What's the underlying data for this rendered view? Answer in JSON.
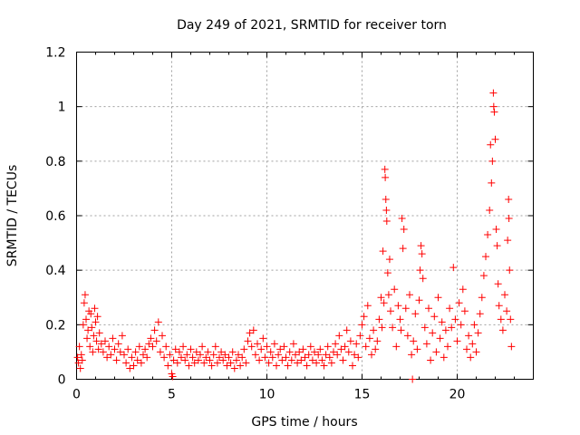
{
  "chart_data": {
    "type": "scatter",
    "title": "Day 249 of 2021, SRMTID for receiver torn",
    "xlabel": "GPS time / hours",
    "ylabel": "SRMTID / TECUs",
    "xlim": [
      0,
      24
    ],
    "ylim": [
      0,
      1.2
    ],
    "xticks": [
      0,
      5,
      10,
      15,
      20
    ],
    "xtick_labels": [
      "0",
      "5",
      "10",
      "15",
      "20"
    ],
    "yticks": [
      0,
      0.2,
      0.4,
      0.6,
      0.8,
      1.0,
      1.2
    ],
    "ytick_labels": [
      "0",
      "0.2",
      "0.4",
      "0.6",
      "0.8",
      "1",
      "1.2"
    ],
    "grid": true,
    "marker": "+",
    "series": [
      {
        "name": "SRMTID",
        "color": "#ff0000",
        "points": [
          [
            0.05,
            0.08
          ],
          [
            0.1,
            0.06
          ],
          [
            0.15,
            0.12
          ],
          [
            0.2,
            0.04
          ],
          [
            0.25,
            0.09
          ],
          [
            0.3,
            0.07
          ],
          [
            0.35,
            0.2
          ],
          [
            0.4,
            0.28
          ],
          [
            0.45,
            0.31
          ],
          [
            0.5,
            0.22
          ],
          [
            0.55,
            0.15
          ],
          [
            0.6,
            0.18
          ],
          [
            0.65,
            0.25
          ],
          [
            0.7,
            0.12
          ],
          [
            0.75,
            0.24
          ],
          [
            0.8,
            0.19
          ],
          [
            0.85,
            0.1
          ],
          [
            0.9,
            0.16
          ],
          [
            0.95,
            0.26
          ],
          [
            1.0,
            0.21
          ],
          [
            1.05,
            0.14
          ],
          [
            1.1,
            0.23
          ],
          [
            1.15,
            0.11
          ],
          [
            1.2,
            0.17
          ],
          [
            1.3,
            0.13
          ],
          [
            1.4,
            0.1
          ],
          [
            1.5,
            0.14
          ],
          [
            1.6,
            0.08
          ],
          [
            1.7,
            0.12
          ],
          [
            1.8,
            0.09
          ],
          [
            1.9,
            0.15
          ],
          [
            2.0,
            0.11
          ],
          [
            2.1,
            0.07
          ],
          [
            2.2,
            0.13
          ],
          [
            2.3,
            0.1
          ],
          [
            2.4,
            0.16
          ],
          [
            2.5,
            0.09
          ],
          [
            2.6,
            0.06
          ],
          [
            2.7,
            0.11
          ],
          [
            2.8,
            0.04
          ],
          [
            2.9,
            0.08
          ],
          [
            3.0,
            0.05
          ],
          [
            3.1,
            0.1
          ],
          [
            3.2,
            0.07
          ],
          [
            3.3,
            0.12
          ],
          [
            3.4,
            0.06
          ],
          [
            3.5,
            0.09
          ],
          [
            3.6,
            0.11
          ],
          [
            3.7,
            0.08
          ],
          [
            3.8,
            0.13
          ],
          [
            3.9,
            0.15
          ],
          [
            4.0,
            0.12
          ],
          [
            4.1,
            0.18
          ],
          [
            4.2,
            0.14
          ],
          [
            4.3,
            0.21
          ],
          [
            4.4,
            0.1
          ],
          [
            4.5,
            0.16
          ],
          [
            4.6,
            0.08
          ],
          [
            4.7,
            0.12
          ],
          [
            4.8,
            0.05
          ],
          [
            4.9,
            0.09
          ],
          [
            5.0,
            0.02
          ],
          [
            5.05,
            0.01
          ],
          [
            5.1,
            0.07
          ],
          [
            5.2,
            0.11
          ],
          [
            5.3,
            0.06
          ],
          [
            5.4,
            0.1
          ],
          [
            5.5,
            0.08
          ],
          [
            5.6,
            0.12
          ],
          [
            5.7,
            0.07
          ],
          [
            5.8,
            0.09
          ],
          [
            5.9,
            0.05
          ],
          [
            6.0,
            0.11
          ],
          [
            6.1,
            0.08
          ],
          [
            6.2,
            0.06
          ],
          [
            6.3,
            0.1
          ],
          [
            6.4,
            0.07
          ],
          [
            6.5,
            0.09
          ],
          [
            6.6,
            0.12
          ],
          [
            6.7,
            0.06
          ],
          [
            6.8,
            0.08
          ],
          [
            6.9,
            0.1
          ],
          [
            7.0,
            0.07
          ],
          [
            7.1,
            0.05
          ],
          [
            7.2,
            0.09
          ],
          [
            7.3,
            0.12
          ],
          [
            7.4,
            0.06
          ],
          [
            7.5,
            0.08
          ],
          [
            7.6,
            0.1
          ],
          [
            7.7,
            0.07
          ],
          [
            7.8,
            0.09
          ],
          [
            7.9,
            0.05
          ],
          [
            8.0,
            0.08
          ],
          [
            8.1,
            0.06
          ],
          [
            8.2,
            0.1
          ],
          [
            8.3,
            0.04
          ],
          [
            8.4,
            0.07
          ],
          [
            8.5,
            0.09
          ],
          [
            8.6,
            0.05
          ],
          [
            8.7,
            0.08
          ],
          [
            8.8,
            0.11
          ],
          [
            8.9,
            0.06
          ],
          [
            9.0,
            0.14
          ],
          [
            9.1,
            0.17
          ],
          [
            9.2,
            0.12
          ],
          [
            9.3,
            0.18
          ],
          [
            9.4,
            0.09
          ],
          [
            9.5,
            0.13
          ],
          [
            9.6,
            0.07
          ],
          [
            9.7,
            0.11
          ],
          [
            9.8,
            0.15
          ],
          [
            9.9,
            0.08
          ],
          [
            10.0,
            0.12
          ],
          [
            10.1,
            0.06
          ],
          [
            10.2,
            0.1
          ],
          [
            10.3,
            0.08
          ],
          [
            10.4,
            0.13
          ],
          [
            10.5,
            0.05
          ],
          [
            10.6,
            0.09
          ],
          [
            10.7,
            0.11
          ],
          [
            10.8,
            0.07
          ],
          [
            10.9,
            0.12
          ],
          [
            11.0,
            0.08
          ],
          [
            11.1,
            0.05
          ],
          [
            11.2,
            0.1
          ],
          [
            11.3,
            0.07
          ],
          [
            11.4,
            0.13
          ],
          [
            11.5,
            0.09
          ],
          [
            11.6,
            0.06
          ],
          [
            11.7,
            0.1
          ],
          [
            11.8,
            0.07
          ],
          [
            11.9,
            0.11
          ],
          [
            12.0,
            0.08
          ],
          [
            12.1,
            0.05
          ],
          [
            12.2,
            0.09
          ],
          [
            12.3,
            0.12
          ],
          [
            12.4,
            0.07
          ],
          [
            12.5,
            0.1
          ],
          [
            12.6,
            0.06
          ],
          [
            12.7,
            0.09
          ],
          [
            12.8,
            0.11
          ],
          [
            12.9,
            0.07
          ],
          [
            13.0,
            0.05
          ],
          [
            13.1,
            0.09
          ],
          [
            13.2,
            0.12
          ],
          [
            13.3,
            0.08
          ],
          [
            13.4,
            0.06
          ],
          [
            13.5,
            0.1
          ],
          [
            13.6,
            0.13
          ],
          [
            13.7,
            0.09
          ],
          [
            13.8,
            0.16
          ],
          [
            13.9,
            0.11
          ],
          [
            14.0,
            0.07
          ],
          [
            14.1,
            0.12
          ],
          [
            14.2,
            0.18
          ],
          [
            14.3,
            0.1
          ],
          [
            14.4,
            0.14
          ],
          [
            14.5,
            0.05
          ],
          [
            14.6,
            0.09
          ],
          [
            14.7,
            0.13
          ],
          [
            14.8,
            0.08
          ],
          [
            14.9,
            0.16
          ],
          [
            15.0,
            0.2
          ],
          [
            15.1,
            0.23
          ],
          [
            15.2,
            0.12
          ],
          [
            15.3,
            0.27
          ],
          [
            15.4,
            0.15
          ],
          [
            15.5,
            0.09
          ],
          [
            15.6,
            0.18
          ],
          [
            15.7,
            0.11
          ],
          [
            15.8,
            0.14
          ],
          [
            15.9,
            0.22
          ],
          [
            16.0,
            0.3
          ],
          [
            16.05,
            0.19
          ],
          [
            16.1,
            0.47
          ],
          [
            16.15,
            0.28
          ],
          [
            16.2,
            0.77
          ],
          [
            16.22,
            0.74
          ],
          [
            16.25,
            0.66
          ],
          [
            16.28,
            0.62
          ],
          [
            16.3,
            0.58
          ],
          [
            16.35,
            0.39
          ],
          [
            16.4,
            0.31
          ],
          [
            16.45,
            0.44
          ],
          [
            16.5,
            0.25
          ],
          [
            16.6,
            0.19
          ],
          [
            16.7,
            0.33
          ],
          [
            16.8,
            0.12
          ],
          [
            16.9,
            0.27
          ],
          [
            17.0,
            0.22
          ],
          [
            17.05,
            0.18
          ],
          [
            17.1,
            0.59
          ],
          [
            17.15,
            0.48
          ],
          [
            17.2,
            0.55
          ],
          [
            17.3,
            0.26
          ],
          [
            17.4,
            0.16
          ],
          [
            17.5,
            0.31
          ],
          [
            17.6,
            0.09
          ],
          [
            17.65,
            0.0
          ],
          [
            17.7,
            0.14
          ],
          [
            17.8,
            0.24
          ],
          [
            17.9,
            0.11
          ],
          [
            18.0,
            0.29
          ],
          [
            18.05,
            0.4
          ],
          [
            18.1,
            0.49
          ],
          [
            18.15,
            0.46
          ],
          [
            18.2,
            0.37
          ],
          [
            18.3,
            0.19
          ],
          [
            18.4,
            0.13
          ],
          [
            18.5,
            0.26
          ],
          [
            18.6,
            0.07
          ],
          [
            18.7,
            0.17
          ],
          [
            18.8,
            0.23
          ],
          [
            18.9,
            0.1
          ],
          [
            19.0,
            0.3
          ],
          [
            19.1,
            0.15
          ],
          [
            19.2,
            0.21
          ],
          [
            19.3,
            0.08
          ],
          [
            19.4,
            0.18
          ],
          [
            19.5,
            0.12
          ],
          [
            19.6,
            0.26
          ],
          [
            19.7,
            0.19
          ],
          [
            19.8,
            0.41
          ],
          [
            19.9,
            0.22
          ],
          [
            20.0,
            0.14
          ],
          [
            20.1,
            0.28
          ],
          [
            20.2,
            0.2
          ],
          [
            20.3,
            0.33
          ],
          [
            20.4,
            0.25
          ],
          [
            20.5,
            0.11
          ],
          [
            20.6,
            0.16
          ],
          [
            20.7,
            0.08
          ],
          [
            20.8,
            0.13
          ],
          [
            20.9,
            0.2
          ],
          [
            21.0,
            0.1
          ],
          [
            21.1,
            0.17
          ],
          [
            21.2,
            0.24
          ],
          [
            21.3,
            0.3
          ],
          [
            21.4,
            0.38
          ],
          [
            21.5,
            0.45
          ],
          [
            21.6,
            0.53
          ],
          [
            21.7,
            0.62
          ],
          [
            21.75,
            0.86
          ],
          [
            21.8,
            0.72
          ],
          [
            21.85,
            0.8
          ],
          [
            21.9,
            1.05
          ],
          [
            21.92,
            1.0
          ],
          [
            21.95,
            0.98
          ],
          [
            22.0,
            0.88
          ],
          [
            22.05,
            0.55
          ],
          [
            22.1,
            0.49
          ],
          [
            22.15,
            0.35
          ],
          [
            22.2,
            0.27
          ],
          [
            22.3,
            0.22
          ],
          [
            22.4,
            0.18
          ],
          [
            22.5,
            0.31
          ],
          [
            22.6,
            0.25
          ],
          [
            22.65,
            0.51
          ],
          [
            22.7,
            0.66
          ],
          [
            22.72,
            0.59
          ],
          [
            22.75,
            0.4
          ],
          [
            22.8,
            0.22
          ],
          [
            22.85,
            0.12
          ]
        ]
      }
    ]
  }
}
